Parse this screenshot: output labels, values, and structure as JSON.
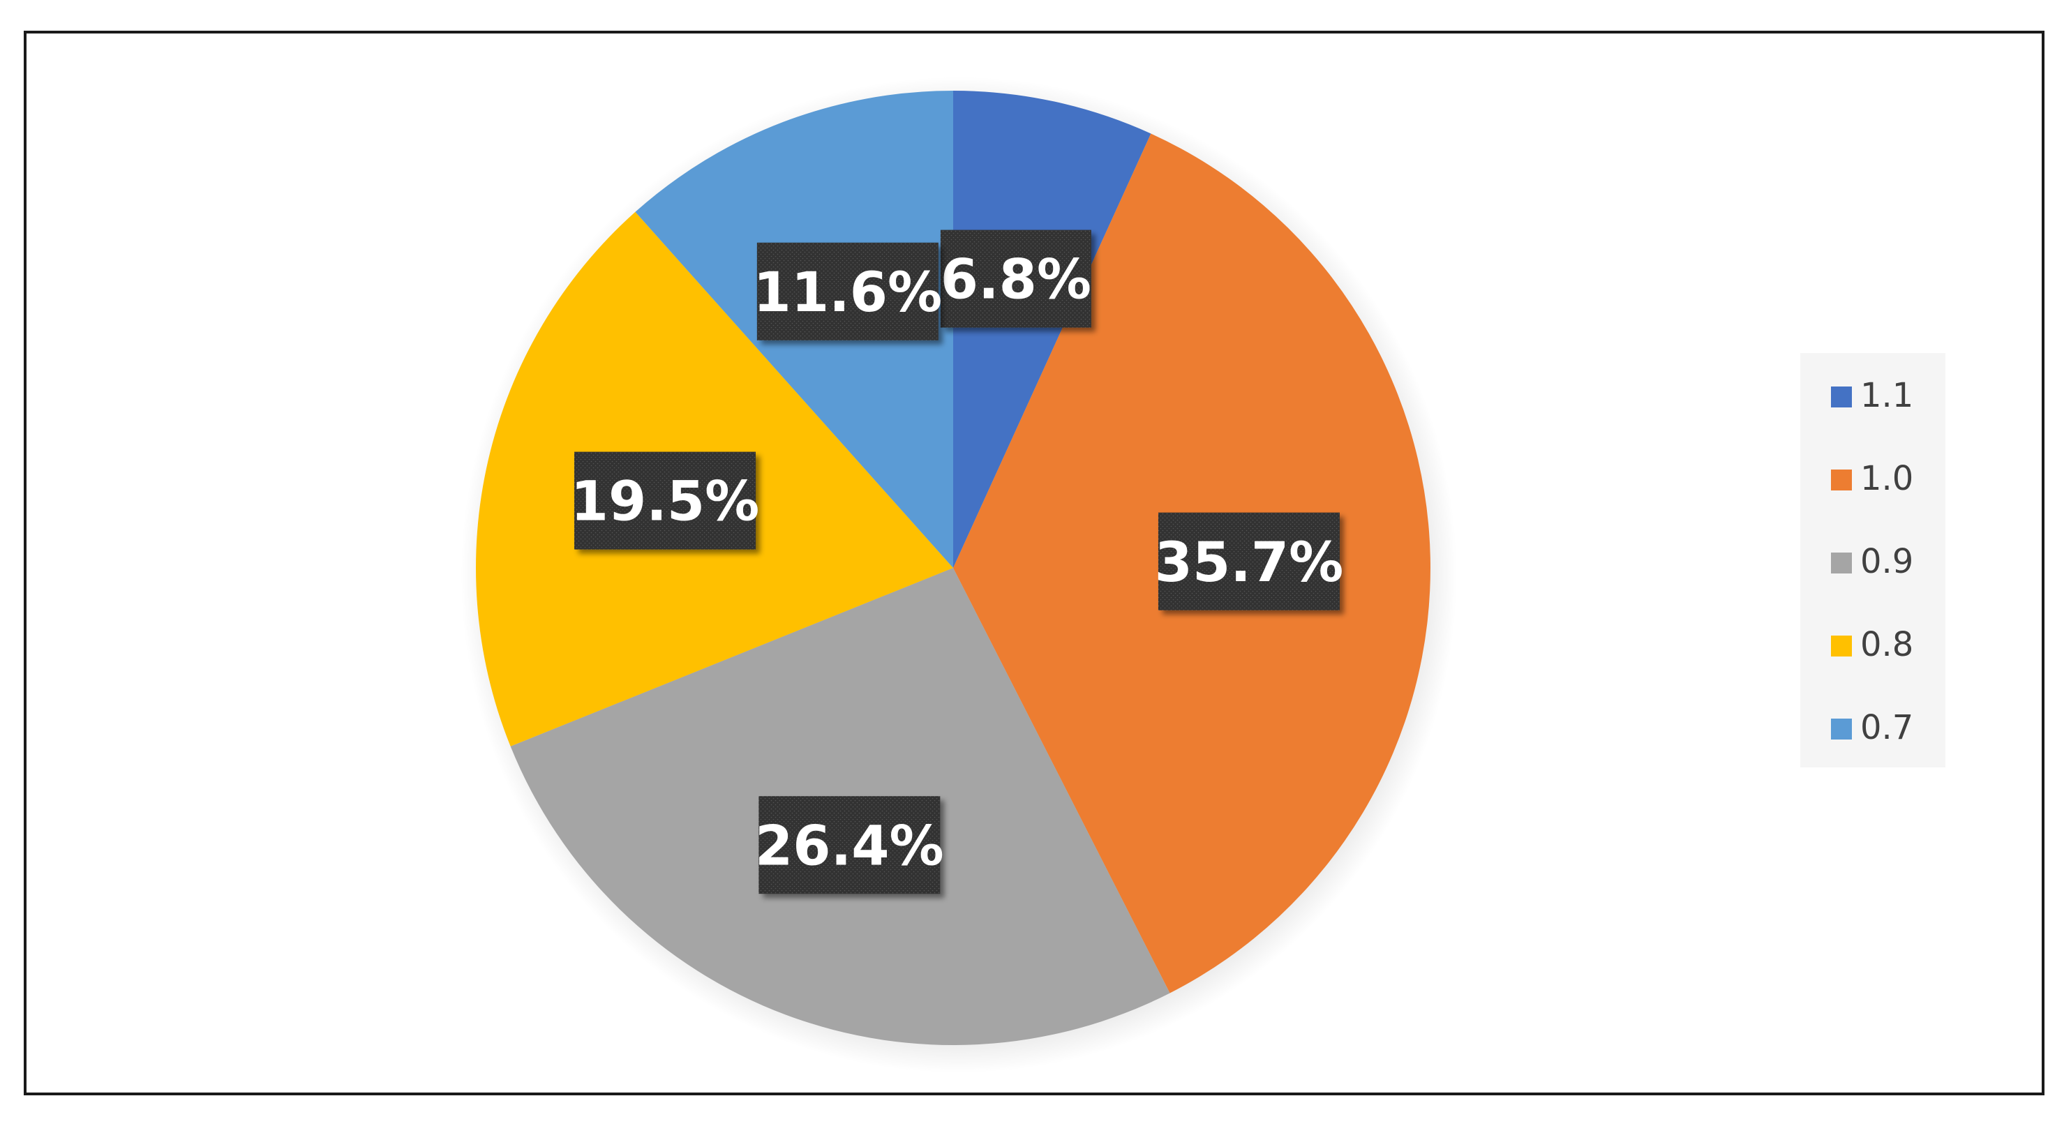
{
  "chart_data": {
    "type": "pie",
    "title": "",
    "start_angle_deg": 0,
    "direction": "clockwise",
    "slices": [
      {
        "label": "1.1",
        "value": 6.8,
        "display": "6.8%",
        "color": "#4472C4"
      },
      {
        "label": "1.0",
        "value": 35.7,
        "display": "35.7%",
        "color": "#ED7D31"
      },
      {
        "label": "0.9",
        "value": 26.4,
        "display": "26.4%",
        "color": "#A5A5A5"
      },
      {
        "label": "0.8",
        "value": 19.5,
        "display": "19.5%",
        "color": "#FFC000"
      },
      {
        "label": "0.7",
        "value": 11.6,
        "display": "11.6%",
        "color": "#5B9BD5"
      }
    ],
    "legend": {
      "position": "right",
      "entries": [
        "1.1",
        "1.0",
        "0.9",
        "0.8",
        "0.7"
      ]
    },
    "data_label_style": {
      "background": "#333333",
      "text_color": "#ffffff"
    }
  }
}
